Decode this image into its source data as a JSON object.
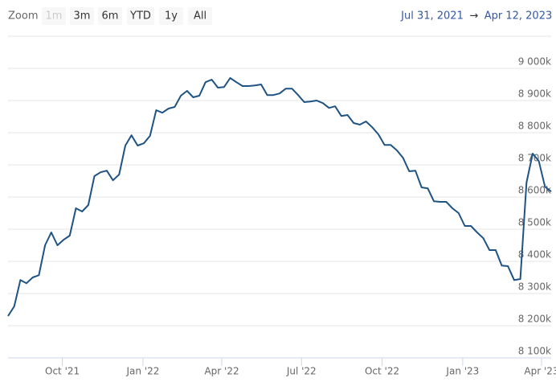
{
  "range_selector": {
    "label": "Zoom",
    "buttons": [
      {
        "text": "1m",
        "enabled": false
      },
      {
        "text": "3m",
        "enabled": true
      },
      {
        "text": "6m",
        "enabled": true
      },
      {
        "text": "YTD",
        "enabled": true
      },
      {
        "text": "1y",
        "enabled": true
      },
      {
        "text": "All",
        "enabled": true
      }
    ],
    "from": "Jul 31, 2021",
    "arrow": "→",
    "to": "Apr 12, 2023"
  },
  "chart_data": {
    "type": "line",
    "xlim": [
      "2021-07-31",
      "2023-04-12"
    ],
    "xticks": [
      {
        "value": "2021-10-01",
        "label": "Oct '21"
      },
      {
        "value": "2022-01-01",
        "label": "Jan '22"
      },
      {
        "value": "2022-04-01",
        "label": "Apr '22"
      },
      {
        "value": "2022-07-01",
        "label": "Jul '22"
      },
      {
        "value": "2022-10-01",
        "label": "Oct '22"
      },
      {
        "value": "2023-01-01",
        "label": "Jan '23"
      },
      {
        "value": "2023-04-01",
        "label": "Apr '23"
      }
    ],
    "ylim": [
      8100000,
      9100000
    ],
    "yticks": [
      {
        "value": 8100000,
        "label": "8 100k"
      },
      {
        "value": 8200000,
        "label": "8 200k"
      },
      {
        "value": 8300000,
        "label": "8 300k"
      },
      {
        "value": 8400000,
        "label": "8 400k"
      },
      {
        "value": 8500000,
        "label": "8 500k"
      },
      {
        "value": 8600000,
        "label": "8 600k"
      },
      {
        "value": 8700000,
        "label": "8 700k"
      },
      {
        "value": 8800000,
        "label": "8 800k"
      },
      {
        "value": 8900000,
        "label": "8 900k"
      },
      {
        "value": 9000000,
        "label": "9 000k"
      }
    ],
    "grid": true,
    "series": [
      {
        "color": "#1f5384",
        "values": [
          8230000,
          8260000,
          8342000,
          8332000,
          8350000,
          8357000,
          8450000,
          8490000,
          8450000,
          8467000,
          8480000,
          8565000,
          8555000,
          8575000,
          8665000,
          8677000,
          8682000,
          8652000,
          8670000,
          8760000,
          8792000,
          8760000,
          8767000,
          8790000,
          8870000,
          8862000,
          8875000,
          8880000,
          8915000,
          8930000,
          8910000,
          8915000,
          8957000,
          8965000,
          8940000,
          8942000,
          8970000,
          8957000,
          8945000,
          8945000,
          8947000,
          8950000,
          8917000,
          8917000,
          8922000,
          8937000,
          8937000,
          8917000,
          8895000,
          8897000,
          8900000,
          8892000,
          8877000,
          8882000,
          8852000,
          8855000,
          8830000,
          8825000,
          8835000,
          8817000,
          8795000,
          8762000,
          8762000,
          8745000,
          8722000,
          8680000,
          8682000,
          8630000,
          8627000,
          8587000,
          8585000,
          8585000,
          8565000,
          8550000,
          8510000,
          8510000,
          8490000,
          8472000,
          8435000,
          8435000,
          8387000,
          8385000,
          8342000,
          8345000,
          8645000,
          8735000,
          8712000,
          8632000,
          8617000
        ]
      }
    ]
  }
}
